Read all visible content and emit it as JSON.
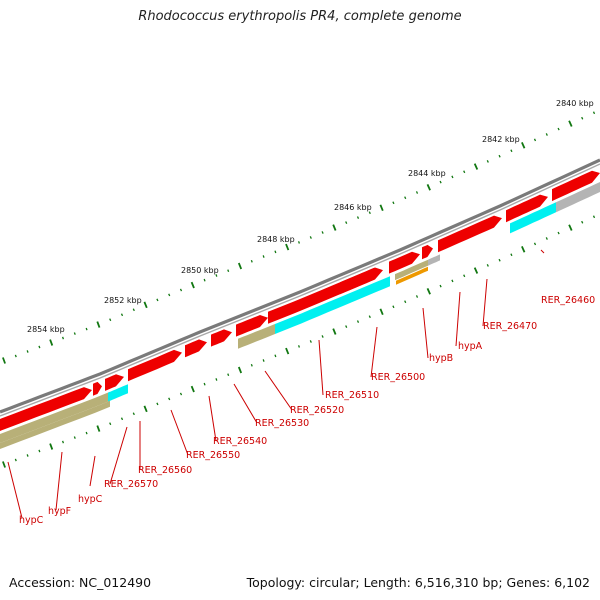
{
  "title": "Rhodococcus erythropolis PR4, complete genome",
  "footer": {
    "accession": "Accession: NC_012490",
    "info": "Topology: circular; Length: 6,516,310 bp; Genes: 6,102"
  },
  "colors": {
    "backbone": "#7a7a7a",
    "cds": "#ee0000",
    "gene_label": "#cc0000",
    "tick": "#117711",
    "features": {
      "cyan": "#00f0f0",
      "khaki": "#b8b078",
      "gray": "#b4b4b4",
      "orange": "#ee9900"
    }
  },
  "scale_labels": [
    "2840 kbp",
    "2842 kbp",
    "2844 kbp",
    "2846 kbp",
    "2848 kbp",
    "2850 kbp",
    "2852 kbp",
    "2854 kbp"
  ],
  "gene_labels": [
    "RER_26460",
    "RER_26470",
    "hypA",
    "hypB",
    "RER_26500",
    "RER_26510",
    "RER_26520",
    "RER_26530",
    "RER_26540",
    "RER_26550",
    "RER_26560",
    "RER_26570",
    "hypC",
    "hypF",
    "hypC"
  ]
}
